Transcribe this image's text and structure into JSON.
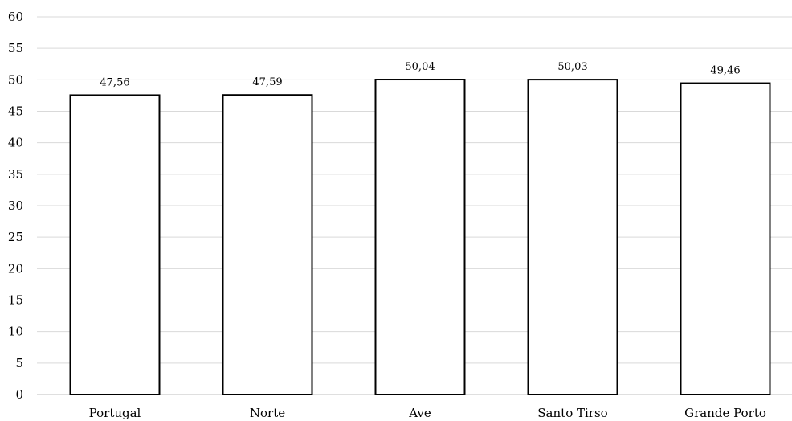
{
  "chart_data": {
    "type": "bar",
    "categories": [
      "Portugal",
      "Norte",
      "Ave",
      "Santo Tirso",
      "Grande Porto"
    ],
    "values": [
      47.56,
      47.59,
      50.04,
      50.03,
      49.46
    ],
    "value_labels": [
      "47,56",
      "47,59",
      "50,04",
      "50,03",
      "49,46"
    ],
    "ylim": [
      0,
      60
    ],
    "yticks": [
      0,
      5,
      10,
      15,
      20,
      25,
      30,
      35,
      40,
      45,
      50,
      55,
      60
    ],
    "grid": true,
    "legend": "none",
    "bar_fill": "#ffffff",
    "bar_stroke": "#000000",
    "grid_color": "#d9d9d9"
  }
}
